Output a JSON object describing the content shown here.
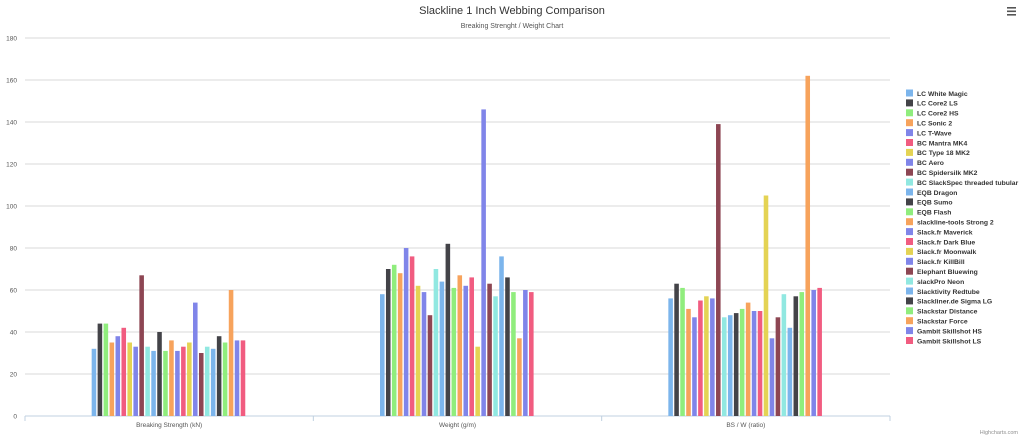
{
  "menu_icon": "hamburger-menu-icon",
  "credits": "Highcharts.com",
  "chart_data": {
    "type": "bar",
    "title": "Slackline 1 Inch Webbing Comparison",
    "subtitle": "Breaking Strenght / Weight Chart",
    "xlabel": "",
    "ylabel": "",
    "ylim": [
      0,
      180
    ],
    "yticks": [
      0,
      20,
      40,
      60,
      80,
      100,
      120,
      140,
      160,
      180
    ],
    "grid": true,
    "legend_position": "right",
    "categories": [
      "Breaking Strength (kN)",
      "Weight (g/m)",
      "BS / W (ratio)"
    ],
    "series": [
      {
        "name": "LC White Magic",
        "color": "#7cb5ec",
        "values": [
          32,
          58,
          56
        ]
      },
      {
        "name": "LC Core2 LS",
        "color": "#434348",
        "values": [
          44,
          70,
          63
        ]
      },
      {
        "name": "LC Core2 HS",
        "color": "#90ed7d",
        "values": [
          44,
          72,
          61
        ]
      },
      {
        "name": "LC Sonic 2",
        "color": "#f7a35c",
        "values": [
          35,
          68,
          51
        ]
      },
      {
        "name": "LC T-Wave",
        "color": "#8085e9",
        "values": [
          38,
          80,
          47
        ]
      },
      {
        "name": "BC Mantra MK4",
        "color": "#f15c80",
        "values": [
          42,
          76,
          55
        ]
      },
      {
        "name": "BC Type 18 MK2",
        "color": "#e4d354",
        "values": [
          35,
          62,
          57
        ]
      },
      {
        "name": "BC Aero",
        "color": "#8085e9",
        "values": [
          33,
          59,
          56
        ]
      },
      {
        "name": "BC Spidersilk MK2",
        "color": "#8d4653",
        "values": [
          67,
          48,
          139
        ]
      },
      {
        "name": "BC SlackSpec threaded tubular",
        "color": "#91e8e1",
        "values": [
          33,
          70,
          47
        ]
      },
      {
        "name": "EQB Dragon",
        "color": "#7cb5ec",
        "values": [
          31,
          64,
          48
        ]
      },
      {
        "name": "EQB Sumo",
        "color": "#434348",
        "values": [
          40,
          82,
          49
        ]
      },
      {
        "name": "EQB Flash",
        "color": "#90ed7d",
        "values": [
          31,
          61,
          51
        ]
      },
      {
        "name": "slackline-tools Strong 2",
        "color": "#f7a35c",
        "values": [
          36,
          67,
          54
        ]
      },
      {
        "name": "Slack.fr Maverick",
        "color": "#8085e9",
        "values": [
          31,
          62,
          50
        ]
      },
      {
        "name": "Slack.fr Dark Blue",
        "color": "#f15c80",
        "values": [
          33,
          66,
          50
        ]
      },
      {
        "name": "Slack.fr Moonwalk",
        "color": "#e4d354",
        "values": [
          35,
          33,
          105
        ]
      },
      {
        "name": "Slack.fr KillBill",
        "color": "#8085e9",
        "values": [
          54,
          146,
          37
        ]
      },
      {
        "name": "Elephant Bluewing",
        "color": "#8d4653",
        "values": [
          30,
          63,
          47
        ]
      },
      {
        "name": "slackPro Neon",
        "color": "#91e8e1",
        "values": [
          33,
          57,
          58
        ]
      },
      {
        "name": "Slacktivity Redtube",
        "color": "#7cb5ec",
        "values": [
          32,
          76,
          42
        ]
      },
      {
        "name": "Slackliner.de Sigma LG",
        "color": "#434348",
        "values": [
          38,
          66,
          57
        ]
      },
      {
        "name": "Slackstar Distance",
        "color": "#90ed7d",
        "values": [
          35,
          59,
          59
        ]
      },
      {
        "name": "Slackstar Force",
        "color": "#f7a35c",
        "values": [
          60,
          37,
          162
        ]
      },
      {
        "name": "Gambit Skillshot HS",
        "color": "#8085e9",
        "values": [
          36,
          60,
          60
        ]
      },
      {
        "name": "Gambit Skillshot LS",
        "color": "#f15c80",
        "values": [
          36,
          59,
          61
        ]
      }
    ]
  }
}
